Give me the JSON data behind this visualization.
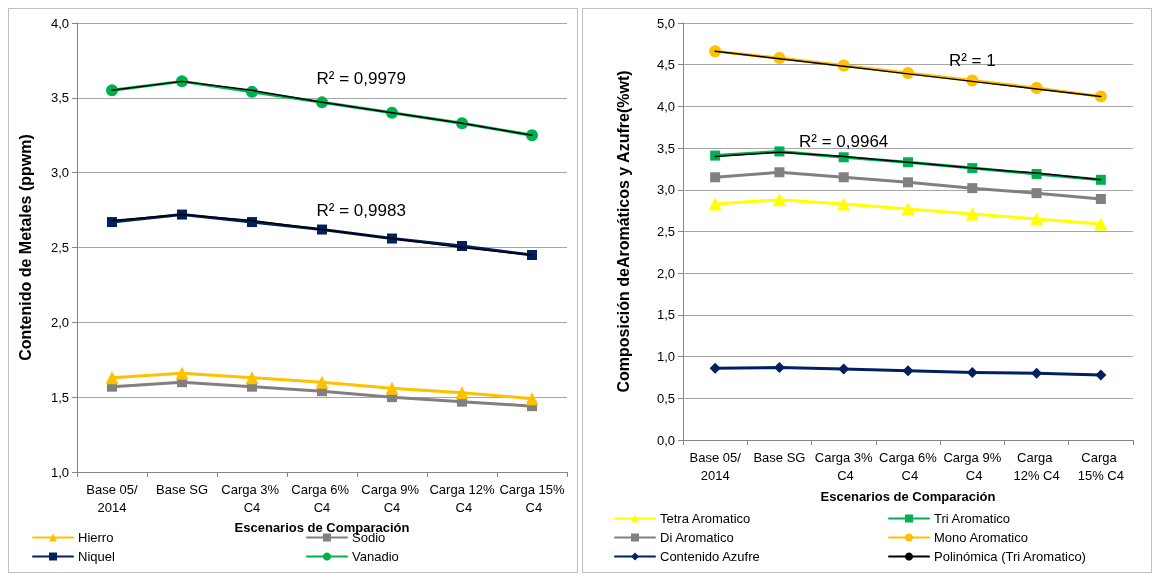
{
  "chart_data": [
    {
      "type": "line",
      "xlabel": "Escenarios de Comparación",
      "ylabel": "Contenido de Metales (ppwm)",
      "categories": [
        "Base 05/2014",
        "Base SG",
        "Carga 3% C4",
        "Carga 6% C4",
        "Carga 9% C4",
        "Carga 12% C4",
        "Carga 15% C4"
      ],
      "ylim": [
        1,
        4
      ],
      "yticks": [
        {
          "value": 1,
          "label": "1,0"
        },
        {
          "value": 1.5,
          "label": "1,5"
        },
        {
          "value": 2,
          "label": "2,0"
        },
        {
          "value": 2.5,
          "label": "2,5"
        },
        {
          "value": 3,
          "label": "3,0"
        },
        {
          "value": 3.5,
          "label": "3,5"
        },
        {
          "value": 4,
          "label": "4,0"
        }
      ],
      "grid": "y",
      "legend": "bottom",
      "line_style": "solid",
      "series": [
        {
          "name": "Hierro",
          "color": "#ffc000",
          "marker": "triangle",
          "values": [
            1.63,
            1.66,
            1.63,
            1.6,
            1.56,
            1.53,
            1.49
          ]
        },
        {
          "name": "Sodio",
          "color": "#808080",
          "marker": "square",
          "values": [
            1.57,
            1.6,
            1.57,
            1.54,
            1.5,
            1.47,
            1.44
          ]
        },
        {
          "name": "Niquel",
          "color": "#002060",
          "marker": "square",
          "values": [
            2.67,
            2.72,
            2.67,
            2.62,
            2.56,
            2.51,
            2.45
          ]
        },
        {
          "name": "Vanadio",
          "color": "#00b050",
          "marker": "circle",
          "values": [
            3.55,
            3.61,
            3.54,
            3.47,
            3.4,
            3.33,
            3.25
          ]
        },
        {
          "color": "#000000",
          "marker": "none",
          "values": [
            2.68,
            2.72,
            2.68,
            2.62,
            2.56,
            2.5,
            2.45
          ]
        },
        {
          "color": "#000000",
          "marker": "none",
          "values": [
            3.55,
            3.61,
            3.55,
            3.47,
            3.4,
            3.33,
            3.25
          ]
        }
      ],
      "annotations": [
        "R² = 0,9979",
        "R² = 0,9983"
      ]
    },
    {
      "type": "line",
      "xlabel": "Escenarios de Comparación",
      "ylabel": "Composición deAromáticos y Azufre(%wt)",
      "categories": [
        "Base 05/2014",
        "Base SG",
        "Carga 3% C4",
        "Carga 6% C4",
        "Carga 9% C4",
        "Carga 12% C4",
        "Carga 15% C4"
      ],
      "ylim": [
        0,
        5
      ],
      "yticks": [
        {
          "value": 0,
          "label": "0,0"
        },
        {
          "value": 0.5,
          "label": "0,5"
        },
        {
          "value": 1,
          "label": "1,0"
        },
        {
          "value": 1.5,
          "label": "1,5"
        },
        {
          "value": 2,
          "label": "2,0"
        },
        {
          "value": 2.5,
          "label": "2,5"
        },
        {
          "value": 3,
          "label": "3,0"
        },
        {
          "value": 3.5,
          "label": "3,5"
        },
        {
          "value": 4,
          "label": "4,0"
        },
        {
          "value": 4.5,
          "label": "4,5"
        },
        {
          "value": 5,
          "label": "5,0"
        }
      ],
      "grid": "y",
      "legend": "bottom",
      "line_style": "solid",
      "series": [
        {
          "name": "Tetra Aromatico",
          "color": "#ffff00",
          "marker": "triangle",
          "values": [
            2.83,
            2.88,
            2.83,
            2.77,
            2.71,
            2.65,
            2.59
          ]
        },
        {
          "name": "Tri Aromatico",
          "color": "#00b050",
          "marker": "square",
          "values": [
            3.41,
            3.46,
            3.39,
            3.33,
            3.26,
            3.19,
            3.12
          ]
        },
        {
          "name": "Di Aromatico",
          "color": "#808080",
          "marker": "square",
          "values": [
            3.15,
            3.21,
            3.15,
            3.09,
            3.02,
            2.96,
            2.89
          ]
        },
        {
          "name": "Mono Aromatico",
          "color": "#ffc000",
          "marker": "circle",
          "values": [
            4.66,
            4.58,
            4.49,
            4.4,
            4.31,
            4.22,
            4.12
          ]
        },
        {
          "name": "Contenido Azufre",
          "color": "#002060",
          "marker": "diamond",
          "values": [
            0.86,
            0.87,
            0.85,
            0.83,
            0.81,
            0.8,
            0.78
          ]
        },
        {
          "name": "Polinómica (Tri Aromatico)",
          "color": "#000000",
          "marker": "none",
          "values": [
            3.4,
            3.45,
            3.4,
            3.33,
            3.26,
            3.2,
            3.12
          ]
        },
        {
          "color": "#000000",
          "marker": "none",
          "values": [
            4.66,
            4.57,
            4.48,
            4.39,
            4.3,
            4.21,
            4.12
          ]
        }
      ],
      "annotations": [
        "R² = 1",
        "R² = 0,9964"
      ]
    }
  ]
}
